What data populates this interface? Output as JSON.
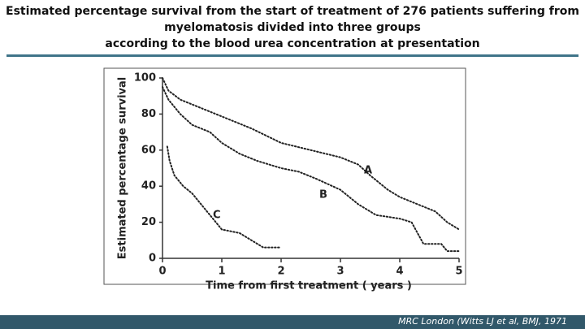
{
  "header": {
    "title": [
      "Estimated percentage survival from the start of treatment of 276 patients suffering from",
      "myelomatosis divided into three groups",
      "according to the blood urea concentration at presentation"
    ]
  },
  "chart_data": {
    "type": "line",
    "x_label": "Time from first treatment ( years )",
    "y_label": "Estimated percentage survival",
    "xlim": [
      0,
      5
    ],
    "xticks": [
      0,
      1,
      2,
      3,
      4,
      5
    ],
    "ylim": [
      0,
      100
    ],
    "yticks": [
      0,
      20,
      40,
      60,
      80,
      100
    ],
    "series": [
      {
        "name": "A",
        "color": "#222222",
        "x": [
          0,
          0.1,
          0.3,
          0.6,
          0.9,
          1.2,
          1.5,
          2,
          2.5,
          3,
          3.3,
          3.5,
          3.8,
          4,
          4.3,
          4.6,
          4.8,
          5
        ],
        "values": [
          100,
          93,
          88,
          84,
          80,
          76,
          72,
          64,
          60,
          56,
          52,
          46,
          38,
          34,
          30,
          26,
          20,
          16
        ]
      },
      {
        "name": "B",
        "color": "#222222",
        "x": [
          0,
          0.1,
          0.3,
          0.5,
          0.8,
          1,
          1.3,
          1.6,
          2,
          2.3,
          2.6,
          3,
          3.3,
          3.6,
          4,
          4.2,
          4.4,
          4.7,
          4.8,
          5
        ],
        "values": [
          95,
          88,
          80,
          74,
          70,
          64,
          58,
          54,
          50,
          48,
          44,
          38,
          30,
          24,
          22,
          20,
          8,
          8,
          4,
          4
        ]
      },
      {
        "name": "C",
        "color": "#222222",
        "x": [
          0.08,
          0.12,
          0.2,
          0.35,
          0.5,
          0.7,
          0.9,
          1,
          1.3,
          1.7,
          2
        ],
        "values": [
          62,
          54,
          46,
          40,
          36,
          28,
          20,
          16,
          14,
          6,
          6
        ]
      }
    ]
  },
  "footer": {
    "source": "MRC London (Witts LJ et al, BMJ, 1971"
  }
}
